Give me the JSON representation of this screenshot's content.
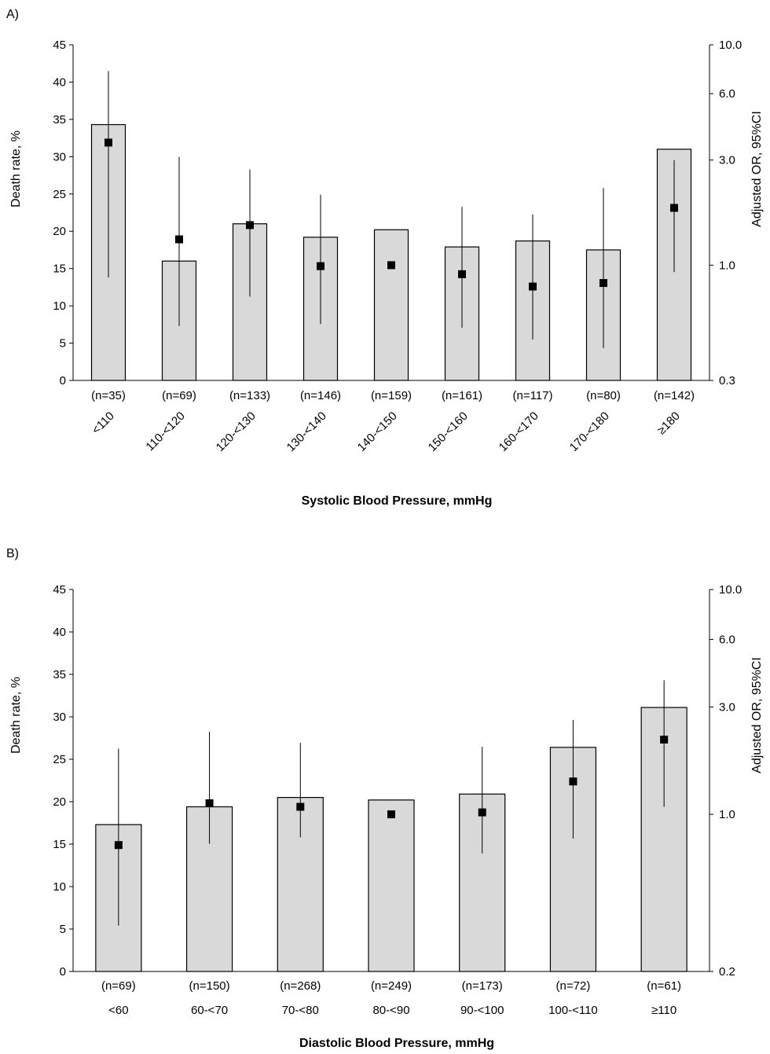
{
  "chart_data": [
    {
      "panel_label": "A)",
      "type": "bar",
      "xlabel": "Systolic Blood Pressure, mmHg",
      "ylabel": "Death rate, %",
      "ylabel_right": "Adjusted  OR, 95%CI",
      "ylim": [
        0,
        45
      ],
      "yticks": [
        "0",
        "5",
        "10",
        "15",
        "20",
        "25",
        "30",
        "35",
        "40",
        "45"
      ],
      "right_ticks": [
        {
          "label": "0.3",
          "value": 0.3
        },
        {
          "label": "1.0",
          "value": 1.0
        },
        {
          "label": "3.0",
          "value": 3.0
        },
        {
          "label": "6.0",
          "value": 6.0
        },
        {
          "label": "10.0",
          "value": 10.0
        }
      ],
      "right_range": [
        0.3,
        10.0
      ],
      "categories": [
        "<110",
        "110-<120",
        "120-<130",
        "130-<140",
        "140-<150",
        "150-<160",
        "160-<170",
        "170-<180",
        "≥180"
      ],
      "n_labels": [
        "(n=35)",
        "(n=69)",
        "(n=133)",
        "(n=146)",
        "(n=159)",
        "(n=161)",
        "(n=117)",
        "(n=80)",
        "(n=142)"
      ],
      "series": [
        {
          "values": [
            34.3,
            16.0,
            21.0,
            19.2,
            20.2,
            17.9,
            18.7,
            17.5,
            31.0
          ]
        },
        {
          "values": [
            3.6,
            1.31,
            1.52,
            0.99,
            1.0,
            0.91,
            0.8,
            0.83,
            1.82
          ],
          "lower": [
            0.88,
            0.53,
            0.72,
            0.54,
            null,
            0.52,
            0.46,
            0.42,
            0.93
          ],
          "upper": [
            7.6,
            3.1,
            2.72,
            2.09,
            null,
            1.84,
            1.7,
            2.24,
            3.0
          ]
        }
      ],
      "x_label_rotation": -45
    },
    {
      "panel_label": "B)",
      "type": "bar",
      "xlabel": "Diastolic Blood Pressure, mmHg",
      "ylabel": "Death rate, %",
      "ylabel_right": "Adjusted  OR, 95%CI",
      "ylim": [
        0,
        45
      ],
      "yticks": [
        "0",
        "5",
        "10",
        "15",
        "20",
        "25",
        "30",
        "35",
        "40",
        "45"
      ],
      "right_ticks": [
        {
          "label": "0.2",
          "value": 0.2
        },
        {
          "label": "1.0",
          "value": 1.0
        },
        {
          "label": "3.0",
          "value": 3.0
        },
        {
          "label": "6.0",
          "value": 6.0
        },
        {
          "label": "10.0",
          "value": 10.0
        }
      ],
      "right_range": [
        0.2,
        10.0
      ],
      "categories": [
        "<60",
        "60-<70",
        "70-<80",
        "80-<90",
        "90-<100",
        "100-<110",
        "≥110"
      ],
      "n_labels": [
        "(n=69)",
        "(n=150)",
        "(n=268)",
        "(n=249)",
        "(n=173)",
        "(n=72)",
        "(n=61)"
      ],
      "series": [
        {
          "values": [
            17.3,
            19.4,
            20.5,
            20.2,
            20.9,
            26.4,
            31.1
          ]
        },
        {
          "values": [
            0.73,
            1.12,
            1.08,
            1.0,
            1.02,
            1.4,
            2.15
          ],
          "lower": [
            0.32,
            0.74,
            0.79,
            null,
            0.67,
            0.78,
            1.08
          ],
          "upper": [
            1.96,
            2.33,
            2.08,
            null,
            2.0,
            2.63,
            3.95
          ]
        }
      ],
      "x_label_rotation": 0
    }
  ]
}
